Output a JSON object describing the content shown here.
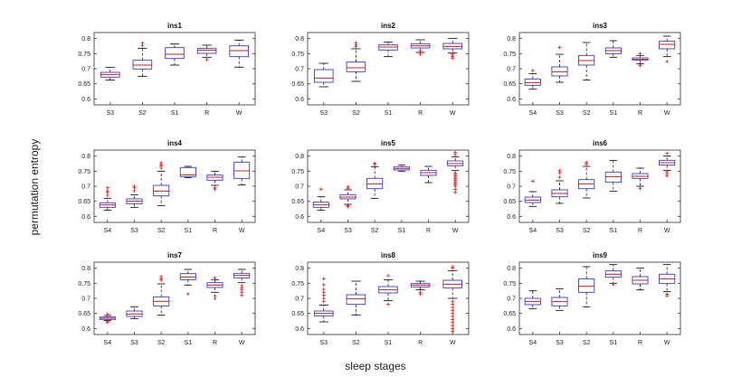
{
  "figure": {
    "ylabel": "permutation entropy",
    "xlabel": "sleep stages"
  },
  "chart_data": [
    {
      "type": "box",
      "title": "ins1",
      "categories": [
        "S3",
        "S2",
        "S1",
        "R",
        "W"
      ],
      "ylim": [
        0.58,
        0.82
      ],
      "yticks": [
        "0.6",
        "0.65",
        "0.7",
        "0.75",
        "0.8"
      ],
      "boxes": [
        {
          "whislo": 0.662,
          "q1": 0.672,
          "med": 0.681,
          "q3": 0.688,
          "whishi": 0.704,
          "fliers": []
        },
        {
          "whislo": 0.675,
          "q1": 0.699,
          "med": 0.712,
          "q3": 0.728,
          "whishi": 0.768,
          "fliers": [
            0.777,
            0.785
          ]
        },
        {
          "whislo": 0.712,
          "q1": 0.734,
          "med": 0.748,
          "q3": 0.77,
          "whishi": 0.782,
          "fliers": []
        },
        {
          "whislo": 0.738,
          "q1": 0.751,
          "med": 0.761,
          "q3": 0.767,
          "whishi": 0.778,
          "fliers": [
            0.73
          ]
        },
        {
          "whislo": 0.705,
          "q1": 0.74,
          "med": 0.76,
          "q3": 0.776,
          "whishi": 0.795,
          "fliers": []
        }
      ]
    },
    {
      "type": "box",
      "title": "ins2",
      "categories": [
        "S3",
        "S2",
        "S1",
        "R",
        "W"
      ],
      "ylim": [
        0.58,
        0.82
      ],
      "yticks": [
        "0.6",
        "0.65",
        "0.7",
        "0.75",
        "0.8"
      ],
      "boxes": [
        {
          "whislo": 0.64,
          "q1": 0.655,
          "med": 0.669,
          "q3": 0.697,
          "whishi": 0.718,
          "fliers": []
        },
        {
          "whislo": 0.658,
          "q1": 0.69,
          "med": 0.703,
          "q3": 0.722,
          "whishi": 0.766,
          "fliers": [
            0.773,
            0.779,
            0.786
          ]
        },
        {
          "whislo": 0.74,
          "q1": 0.762,
          "med": 0.772,
          "q3": 0.779,
          "whishi": 0.788,
          "fliers": []
        },
        {
          "whislo": 0.754,
          "q1": 0.769,
          "med": 0.776,
          "q3": 0.783,
          "whishi": 0.796,
          "fliers": [
            0.748,
            0.755,
            0.76
          ]
        },
        {
          "whislo": 0.752,
          "q1": 0.766,
          "med": 0.774,
          "q3": 0.784,
          "whishi": 0.8,
          "fliers": [
            0.735,
            0.74,
            0.745,
            0.75
          ]
        }
      ]
    },
    {
      "type": "box",
      "title": "ins3",
      "categories": [
        "S4",
        "S3",
        "S2",
        "S1",
        "R",
        "W"
      ],
      "ylim": [
        0.58,
        0.82
      ],
      "yticks": [
        "0.6",
        "0.65",
        "0.7",
        "0.75",
        "0.8"
      ],
      "boxes": [
        {
          "whislo": 0.632,
          "q1": 0.645,
          "med": 0.654,
          "q3": 0.666,
          "whishi": 0.684,
          "fliers": [
            0.694
          ]
        },
        {
          "whislo": 0.655,
          "q1": 0.676,
          "med": 0.69,
          "q3": 0.706,
          "whishi": 0.748,
          "fliers": [
            0.77
          ]
        },
        {
          "whislo": 0.662,
          "q1": 0.712,
          "med": 0.727,
          "q3": 0.744,
          "whishi": 0.787,
          "fliers": []
        },
        {
          "whislo": 0.738,
          "q1": 0.75,
          "med": 0.76,
          "q3": 0.769,
          "whishi": 0.793,
          "fliers": []
        },
        {
          "whislo": 0.717,
          "q1": 0.728,
          "med": 0.731,
          "q3": 0.736,
          "whishi": 0.744,
          "fliers": [
            0.71,
            0.715,
            0.75
          ]
        },
        {
          "whislo": 0.74,
          "q1": 0.766,
          "med": 0.781,
          "q3": 0.791,
          "whishi": 0.808,
          "fliers": [
            0.724
          ]
        }
      ]
    },
    {
      "type": "box",
      "title": "ins4",
      "categories": [
        "S4",
        "S3",
        "S2",
        "S1",
        "R",
        "W"
      ],
      "ylim": [
        0.58,
        0.82
      ],
      "yticks": [
        "0.6",
        "0.65",
        "0.7",
        "0.75",
        "0.8"
      ],
      "boxes": [
        {
          "whislo": 0.62,
          "q1": 0.63,
          "med": 0.638,
          "q3": 0.645,
          "whishi": 0.66,
          "fliers": [
            0.67,
            0.68,
            0.685,
            0.695
          ]
        },
        {
          "whislo": 0.63,
          "q1": 0.642,
          "med": 0.65,
          "q3": 0.658,
          "whishi": 0.672,
          "fliers": [
            0.685,
            0.695,
            0.7
          ]
        },
        {
          "whislo": 0.636,
          "q1": 0.668,
          "med": 0.684,
          "q3": 0.703,
          "whishi": 0.75,
          "fliers": [
            0.76,
            0.768,
            0.772,
            0.778
          ]
        },
        {
          "whislo": 0.728,
          "q1": 0.732,
          "med": 0.738,
          "q3": 0.762,
          "whishi": 0.766,
          "fliers": []
        },
        {
          "whislo": 0.703,
          "q1": 0.72,
          "med": 0.73,
          "q3": 0.737,
          "whishi": 0.75,
          "fliers": [
            0.69,
            0.695
          ]
        },
        {
          "whislo": 0.704,
          "q1": 0.726,
          "med": 0.751,
          "q3": 0.78,
          "whishi": 0.797,
          "fliers": []
        }
      ]
    },
    {
      "type": "box",
      "title": "ins5",
      "categories": [
        "S4",
        "S3",
        "S2",
        "S1",
        "R",
        "W"
      ],
      "ylim": [
        0.58,
        0.82
      ],
      "yticks": [
        "0.6",
        "0.65",
        "0.7",
        "0.75",
        "0.8"
      ],
      "boxes": [
        {
          "whislo": 0.62,
          "q1": 0.63,
          "med": 0.639,
          "q3": 0.647,
          "whishi": 0.665,
          "fliers": [
            0.69
          ]
        },
        {
          "whislo": 0.64,
          "q1": 0.658,
          "med": 0.664,
          "q3": 0.672,
          "whishi": 0.688,
          "fliers": [
            0.632,
            0.636,
            0.693,
            0.698
          ]
        },
        {
          "whislo": 0.66,
          "q1": 0.692,
          "med": 0.708,
          "q3": 0.726,
          "whishi": 0.765,
          "fliers": [
            0.772,
            0.776
          ]
        },
        {
          "whislo": 0.75,
          "q1": 0.754,
          "med": 0.759,
          "q3": 0.764,
          "whishi": 0.77,
          "fliers": []
        },
        {
          "whislo": 0.712,
          "q1": 0.736,
          "med": 0.745,
          "q3": 0.753,
          "whishi": 0.766,
          "fliers": []
        },
        {
          "whislo": 0.752,
          "q1": 0.768,
          "med": 0.775,
          "q3": 0.784,
          "whishi": 0.797,
          "fliers": [
            0.68,
            0.69,
            0.7,
            0.705,
            0.71,
            0.715,
            0.72,
            0.725,
            0.73,
            0.735,
            0.74,
            0.745,
            0.805,
            0.812
          ]
        }
      ]
    },
    {
      "type": "box",
      "title": "ins6",
      "categories": [
        "S4",
        "S3",
        "S2",
        "S1",
        "R",
        "W"
      ],
      "ylim": [
        0.58,
        0.82
      ],
      "yticks": [
        "0.6",
        "0.65",
        "0.7",
        "0.75",
        "0.8"
      ],
      "boxes": [
        {
          "whislo": 0.633,
          "q1": 0.646,
          "med": 0.654,
          "q3": 0.664,
          "whishi": 0.682,
          "fliers": [
            0.717
          ]
        },
        {
          "whislo": 0.643,
          "q1": 0.665,
          "med": 0.676,
          "q3": 0.688,
          "whishi": 0.718,
          "fliers": [
            0.73,
            0.745,
            0.752
          ]
        },
        {
          "whislo": 0.661,
          "q1": 0.692,
          "med": 0.708,
          "q3": 0.722,
          "whishi": 0.766,
          "fliers": [
            0.773,
            0.779
          ]
        },
        {
          "whislo": 0.683,
          "q1": 0.713,
          "med": 0.732,
          "q3": 0.747,
          "whishi": 0.786,
          "fliers": []
        },
        {
          "whislo": 0.7,
          "q1": 0.726,
          "med": 0.733,
          "q3": 0.742,
          "whishi": 0.76,
          "fliers": [
            0.693
          ]
        },
        {
          "whislo": 0.752,
          "q1": 0.77,
          "med": 0.778,
          "q3": 0.786,
          "whishi": 0.8,
          "fliers": [
            0.735,
            0.742,
            0.748,
            0.809
          ]
        }
      ]
    },
    {
      "type": "box",
      "title": "ins7",
      "categories": [
        "S4",
        "S3",
        "S2",
        "S1",
        "R",
        "W"
      ],
      "ylim": [
        0.58,
        0.82
      ],
      "yticks": [
        "0.6",
        "0.65",
        "0.7",
        "0.75",
        "0.8"
      ],
      "boxes": [
        {
          "whislo": 0.627,
          "q1": 0.63,
          "med": 0.634,
          "q3": 0.638,
          "whishi": 0.643,
          "fliers": [
            0.62,
            0.624,
            0.648
          ]
        },
        {
          "whislo": 0.633,
          "q1": 0.64,
          "med": 0.648,
          "q3": 0.658,
          "whishi": 0.672,
          "fliers": []
        },
        {
          "whislo": 0.644,
          "q1": 0.675,
          "med": 0.69,
          "q3": 0.705,
          "whishi": 0.748,
          "fliers": [
            0.76,
            0.765,
            0.772
          ]
        },
        {
          "whislo": 0.744,
          "q1": 0.762,
          "med": 0.771,
          "q3": 0.782,
          "whishi": 0.796,
          "fliers": [
            0.715
          ]
        },
        {
          "whislo": 0.72,
          "q1": 0.736,
          "med": 0.744,
          "q3": 0.752,
          "whishi": 0.762,
          "fliers": [
            0.7,
            0.708,
            0.768
          ]
        },
        {
          "whislo": 0.752,
          "q1": 0.768,
          "med": 0.776,
          "q3": 0.783,
          "whishi": 0.796,
          "fliers": [
            0.71,
            0.72,
            0.728,
            0.735,
            0.742
          ]
        }
      ]
    },
    {
      "type": "box",
      "title": "ins8",
      "categories": [
        "S3",
        "S2",
        "S1",
        "R",
        "W"
      ],
      "ylim": [
        0.58,
        0.82
      ],
      "yticks": [
        "0.6",
        "0.65",
        "0.7",
        "0.75",
        "0.8"
      ],
      "boxes": [
        {
          "whislo": 0.622,
          "q1": 0.642,
          "med": 0.65,
          "q3": 0.658,
          "whishi": 0.678,
          "fliers": [
            0.69,
            0.7,
            0.71,
            0.72,
            0.73,
            0.745,
            0.765
          ]
        },
        {
          "whislo": 0.645,
          "q1": 0.68,
          "med": 0.699,
          "q3": 0.712,
          "whishi": 0.757,
          "fliers": []
        },
        {
          "whislo": 0.692,
          "q1": 0.718,
          "med": 0.729,
          "q3": 0.739,
          "whishi": 0.762,
          "fliers": [
            0.68,
            0.775
          ]
        },
        {
          "whislo": 0.728,
          "q1": 0.738,
          "med": 0.744,
          "q3": 0.749,
          "whishi": 0.757,
          "fliers": [
            0.714,
            0.72
          ]
        },
        {
          "whislo": 0.7,
          "q1": 0.735,
          "med": 0.747,
          "q3": 0.76,
          "whishi": 0.792,
          "fliers": [
            0.59,
            0.6,
            0.61,
            0.62,
            0.63,
            0.64,
            0.65,
            0.66,
            0.67,
            0.68,
            0.69,
            0.8,
            0.805
          ]
        }
      ]
    },
    {
      "type": "box",
      "title": "ins9",
      "categories": [
        "S4",
        "S3",
        "S2",
        "S1",
        "R",
        "W"
      ],
      "ylim": [
        0.58,
        0.82
      ],
      "yticks": [
        "0.6",
        "0.65",
        "0.7",
        "0.75",
        "0.8"
      ],
      "boxes": [
        {
          "whislo": 0.666,
          "q1": 0.679,
          "med": 0.689,
          "q3": 0.7,
          "whishi": 0.725,
          "fliers": []
        },
        {
          "whislo": 0.66,
          "q1": 0.675,
          "med": 0.689,
          "q3": 0.703,
          "whishi": 0.732,
          "fliers": []
        },
        {
          "whislo": 0.672,
          "q1": 0.72,
          "med": 0.74,
          "q3": 0.765,
          "whishi": 0.805,
          "fliers": []
        },
        {
          "whislo": 0.75,
          "q1": 0.77,
          "med": 0.78,
          "q3": 0.791,
          "whishi": 0.812,
          "fliers": [
            0.745
          ]
        },
        {
          "whislo": 0.728,
          "q1": 0.748,
          "med": 0.76,
          "q3": 0.772,
          "whishi": 0.8,
          "fliers": []
        },
        {
          "whislo": 0.722,
          "q1": 0.749,
          "med": 0.765,
          "q3": 0.78,
          "whishi": 0.812,
          "fliers": [
            0.708,
            0.714
          ]
        }
      ]
    }
  ]
}
